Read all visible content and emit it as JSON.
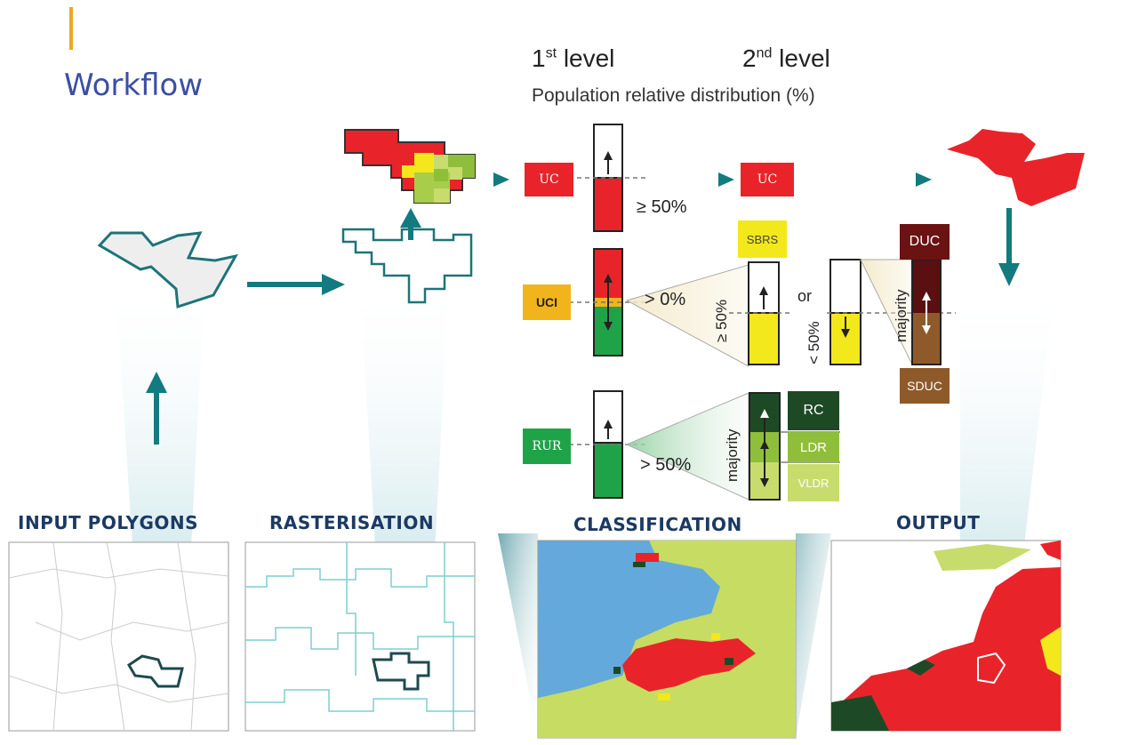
{
  "title": "Workflow",
  "levels": {
    "first_base": "1",
    "first_sup": "st",
    "first_word": "level",
    "second_base": "2",
    "second_sup": "nd",
    "second_word": "level"
  },
  "subtitle": "Population relative distribution (%)",
  "thresholds": {
    "uc": "≥ 50%",
    "uci": "> 0%",
    "rur": "> 50%",
    "ge50": "≥ 50%",
    "lt50": "< 50%",
    "or": "or"
  },
  "majority_label": "majority",
  "classes": {
    "uc": {
      "label": "UC",
      "color": "#e8242a"
    },
    "uci": {
      "label": "UCI",
      "color": "#f2b41c"
    },
    "rur": {
      "label": "RUR",
      "color": "#1fa349"
    },
    "sbrs": {
      "label": "SBRS",
      "color": "#f2e81b"
    },
    "duc": {
      "label": "DUC",
      "color": "#6b1213"
    },
    "sduc": {
      "label": "SDUC",
      "color": "#8f5a2a"
    },
    "rc": {
      "label": "RC",
      "color": "#1d4a25"
    },
    "ldr": {
      "label": "LDR",
      "color": "#8fbf3a"
    },
    "vldr": {
      "label": "VLDR",
      "color": "#c8dc6e"
    }
  },
  "stages": {
    "input": "INPUT POLYGONS",
    "rasterisation": "RASTERISATION",
    "classification": "CLASSIFICATION",
    "output": "OUTPUT"
  },
  "colors": {
    "accent": "#e9a825",
    "title": "#3b4fa3",
    "arrow": "#137a7f",
    "heading": "#1b3a63",
    "water": "#64a9dc",
    "land": "#c6dc62"
  }
}
